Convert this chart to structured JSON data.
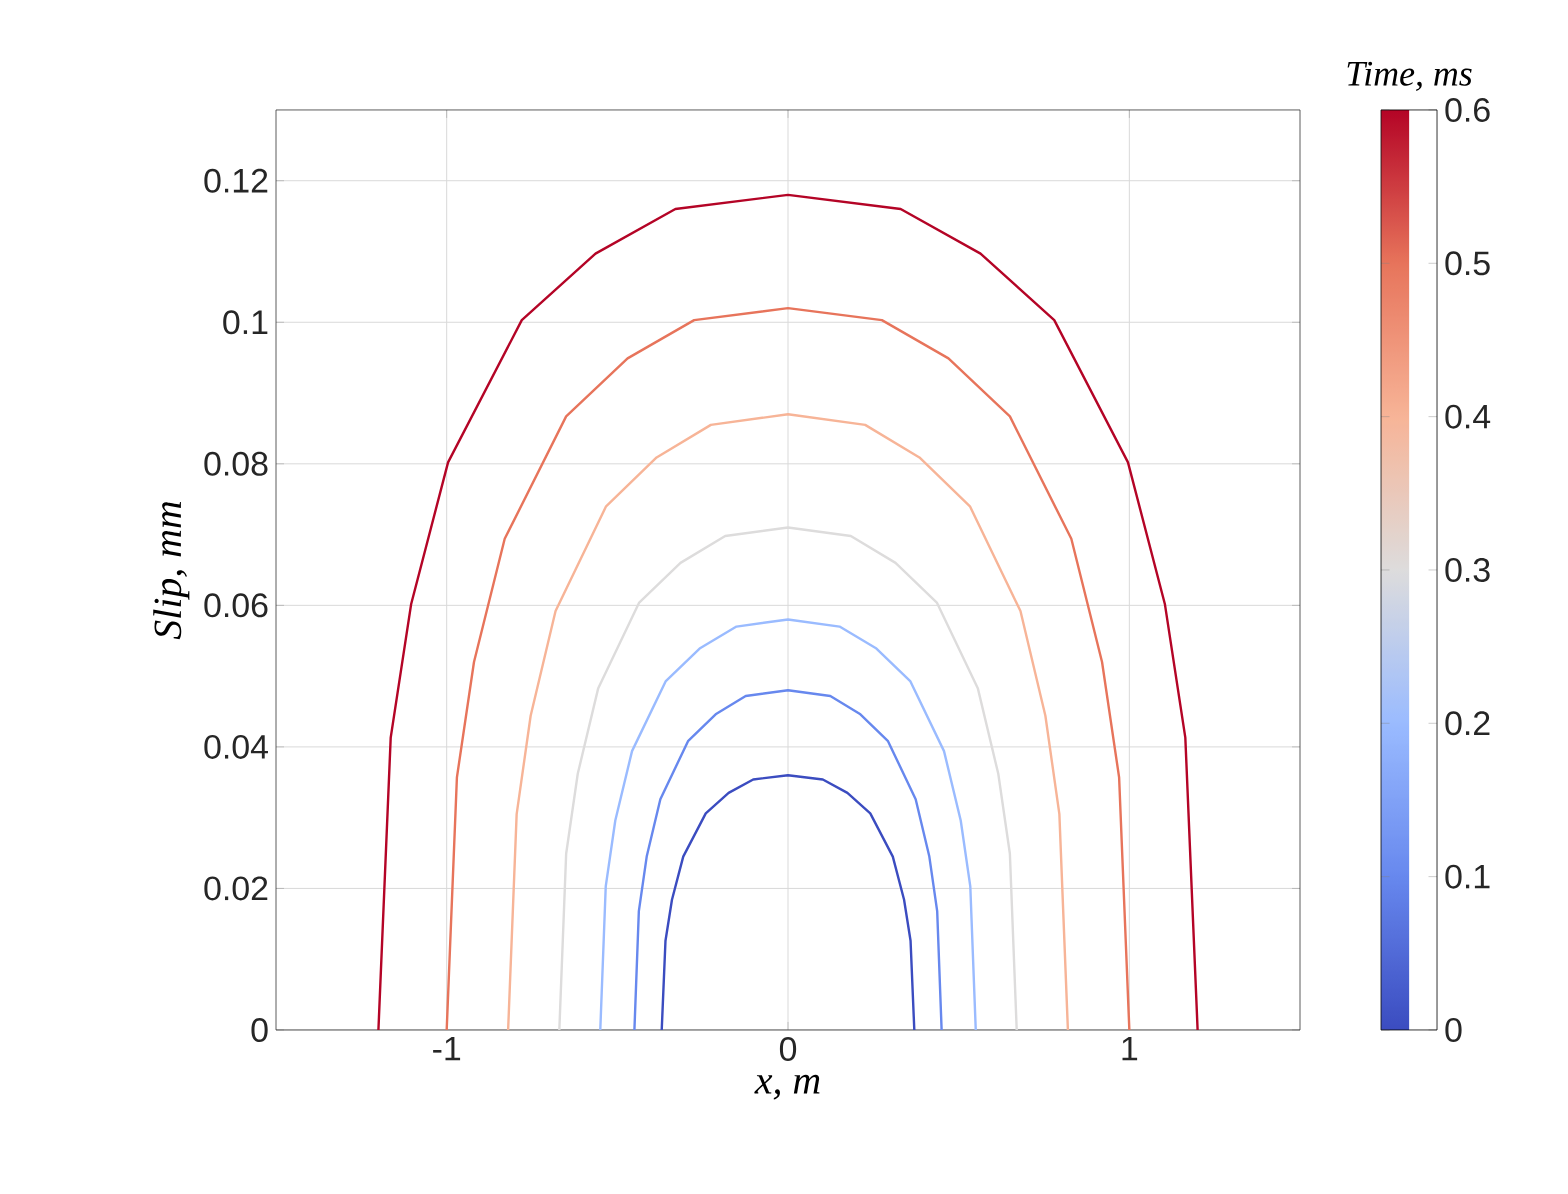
{
  "chart_data": {
    "type": "line",
    "xlabel": "x,  m",
    "ylabel": "Slip,  mm",
    "clabel": "Time,  ms",
    "xlim": [
      -1.5,
      1.5
    ],
    "xticks": [
      -1,
      0,
      1
    ],
    "ylim": [
      0,
      0.13
    ],
    "yticks": [
      0,
      0.02,
      0.04,
      0.06,
      0.08,
      0.1,
      0.12
    ],
    "clim": [
      0,
      0.6
    ],
    "cticks": [
      0,
      0.1,
      0.2,
      0.3,
      0.4,
      0.5,
      0.6
    ],
    "grid": true,
    "series": [
      {
        "color": "#3b4cc0",
        "x": [
          -0.37,
          -0.359,
          -0.34,
          -0.307,
          -0.241,
          -0.174,
          -0.102,
          0,
          0.102,
          0.174,
          0.241,
          0.307,
          0.34,
          0.359,
          0.37
        ],
        "values": [
          0,
          0.0126,
          0.0184,
          0.0245,
          0.0306,
          0.0335,
          0.0354,
          0.036,
          0.0354,
          0.0335,
          0.0306,
          0.0245,
          0.0184,
          0.0126,
          0
        ]
      },
      {
        "color": "#6788ee",
        "x": [
          -0.45,
          -0.437,
          -0.414,
          -0.374,
          -0.293,
          -0.212,
          -0.124,
          0,
          0.124,
          0.212,
          0.293,
          0.374,
          0.414,
          0.437,
          0.45
        ],
        "values": [
          0,
          0.0168,
          0.0245,
          0.0326,
          0.0408,
          0.0446,
          0.0472,
          0.048,
          0.0472,
          0.0446,
          0.0408,
          0.0326,
          0.0245,
          0.0168,
          0
        ]
      },
      {
        "color": "#9abbff",
        "x": [
          -0.55,
          -0.534,
          -0.506,
          -0.457,
          -0.358,
          -0.259,
          -0.151,
          0,
          0.151,
          0.259,
          0.358,
          0.457,
          0.506,
          0.534,
          0.55
        ],
        "values": [
          0,
          0.0203,
          0.0296,
          0.0394,
          0.0493,
          0.0539,
          0.057,
          0.058,
          0.057,
          0.0539,
          0.0493,
          0.0394,
          0.0296,
          0.0203,
          0
        ]
      },
      {
        "color": "#dddcdc",
        "x": [
          -0.67,
          -0.65,
          -0.616,
          -0.556,
          -0.436,
          -0.315,
          -0.184,
          0,
          0.184,
          0.315,
          0.436,
          0.556,
          0.616,
          0.65,
          0.67
        ],
        "values": [
          0,
          0.0249,
          0.0362,
          0.0483,
          0.0604,
          0.066,
          0.0698,
          0.071,
          0.0698,
          0.066,
          0.0604,
          0.0483,
          0.0362,
          0.0249,
          0
        ]
      },
      {
        "color": "#f7b497",
        "x": [
          -0.82,
          -0.795,
          -0.754,
          -0.681,
          -0.533,
          -0.385,
          -0.226,
          0,
          0.226,
          0.385,
          0.533,
          0.681,
          0.754,
          0.795,
          0.82
        ],
        "values": [
          0,
          0.0305,
          0.0444,
          0.0592,
          0.074,
          0.0809,
          0.0855,
          0.087,
          0.0855,
          0.0809,
          0.074,
          0.0592,
          0.0444,
          0.0305,
          0
        ]
      },
      {
        "color": "#e7745b",
        "x": [
          -1.0,
          -0.97,
          -0.92,
          -0.83,
          -0.65,
          -0.47,
          -0.275,
          0,
          0.275,
          0.47,
          0.65,
          0.83,
          0.92,
          0.97,
          1.0
        ],
        "values": [
          0,
          0.0357,
          0.052,
          0.0694,
          0.0867,
          0.0949,
          0.1003,
          0.102,
          0.1003,
          0.0949,
          0.0867,
          0.0694,
          0.052,
          0.0357,
          0
        ]
      },
      {
        "color": "#b40426",
        "x": [
          -1.2,
          -1.164,
          -1.104,
          -0.996,
          -0.78,
          -0.564,
          -0.33,
          0,
          0.33,
          0.564,
          0.78,
          0.996,
          1.104,
          1.164,
          1.2
        ],
        "values": [
          0,
          0.0413,
          0.0602,
          0.0802,
          0.1003,
          0.1097,
          0.116,
          0.118,
          0.116,
          0.1097,
          0.1003,
          0.0802,
          0.0602,
          0.0413,
          0
        ]
      }
    ]
  }
}
